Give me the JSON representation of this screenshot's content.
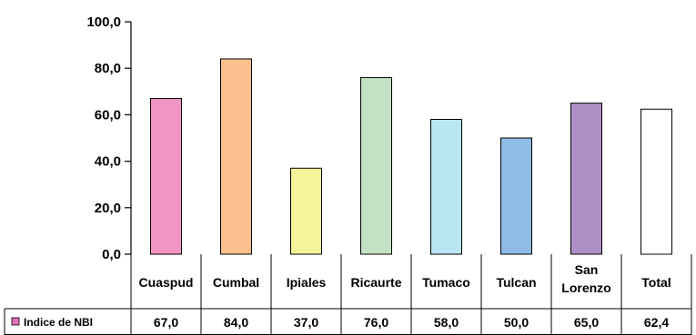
{
  "chart_data": {
    "type": "bar",
    "categories": [
      "Cuaspud",
      "Cumbal",
      "Ipiales",
      "Ricaurte",
      "Tumaco",
      "Tulcan",
      "San Lorenzo",
      "Total"
    ],
    "series": [
      {
        "name": "Indice de NBI",
        "values": [
          67.0,
          84.0,
          37.0,
          76.0,
          58.0,
          50.0,
          65.0,
          62.4
        ],
        "value_labels": [
          "67,0",
          "84,0",
          "37,0",
          "76,0",
          "58,0",
          "50,0",
          "65,0",
          "62,4"
        ],
        "colors": [
          "#f295c3",
          "#fbc08e",
          "#f6f39a",
          "#c3e2c3",
          "#b9e6f0",
          "#8dbce4",
          "#ad91c6",
          "#ffffff"
        ],
        "legend_color": "#e070b8"
      }
    ],
    "ylim": [
      0,
      100
    ],
    "yticks": [
      0,
      20,
      40,
      60,
      80,
      100
    ],
    "ytick_labels": [
      "0,0",
      "20,0",
      "40,0",
      "60,0",
      "80,0",
      "100,0"
    ],
    "grid": false,
    "legend_placement": "data-table-row",
    "data_table": true
  }
}
